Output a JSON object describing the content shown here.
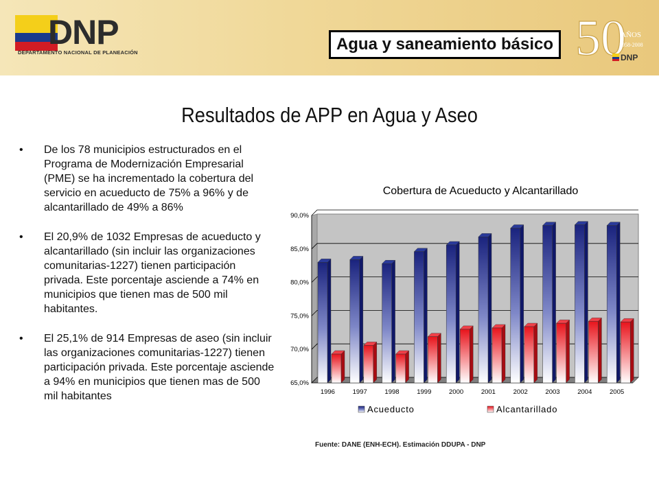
{
  "header": {
    "logo_text": "DNP",
    "logo_subtitle": "DEPARTAMENTO NACIONAL DE PLANEACIÓN",
    "section_label": "Agua y saneamiento básico",
    "anniversary": {
      "number": "50",
      "word": "AÑOS",
      "years": "1958-2008",
      "brand": "DNP"
    }
  },
  "slide_title": "Resultados de APP en Agua y Aseo",
  "bullets": [
    {
      "marker": "•",
      "text": "De los 78 municipios estructurados en el Programa de Modernización Empresarial (PME) se ha incrementado la cobertura del servicio en acueducto de 75% a 96% y de alcantarillado de 49% a 86%"
    },
    {
      "marker": "•",
      "text": "El 20,9% de 1032 Empresas de acueducto y alcantarillado (sin incluir las organizaciones comunitarias-1227) tienen participación privada. Este porcentaje asciende a 74% en municipios que tienen mas de 500 mil habitantes."
    },
    {
      "marker": "•",
      "text": "El 25,1% de 914 Empresas de aseo (sin incluir las organizaciones comunitarias-1227) tienen participación privada. Este porcentaje asciende a 94% en municipios que tienen mas de 500 mil habitantes"
    }
  ],
  "chart_data": {
    "type": "bar",
    "title": "Cobertura de Acueducto y Alcantarillado",
    "categories": [
      "1996",
      "1997",
      "1998",
      "1999",
      "2000",
      "2001",
      "2002",
      "2003",
      "2004",
      "2005"
    ],
    "series": [
      {
        "name": "Acueducto",
        "color": "#1f2f8a",
        "values": [
          83.0,
          83.4,
          82.8,
          84.6,
          85.6,
          86.8,
          88.1,
          88.5,
          88.6,
          88.5
        ]
      },
      {
        "name": "Alcantarillado",
        "color": "#e8141c",
        "values": [
          69.3,
          70.6,
          69.3,
          71.9,
          73.0,
          73.2,
          73.4,
          73.9,
          74.2,
          74.1
        ]
      }
    ],
    "ylim": [
      65,
      90
    ],
    "yticks": [
      65,
      70,
      75,
      80,
      85,
      90
    ],
    "ytick_labels": [
      "65,0%",
      "70,0%",
      "75,0%",
      "80,0%",
      "85,0%",
      "90,0%"
    ],
    "grid": true,
    "legend": "bottom"
  },
  "source": "Fuente: DANE (ENH-ECH). Estimación DDUPA - DNP"
}
